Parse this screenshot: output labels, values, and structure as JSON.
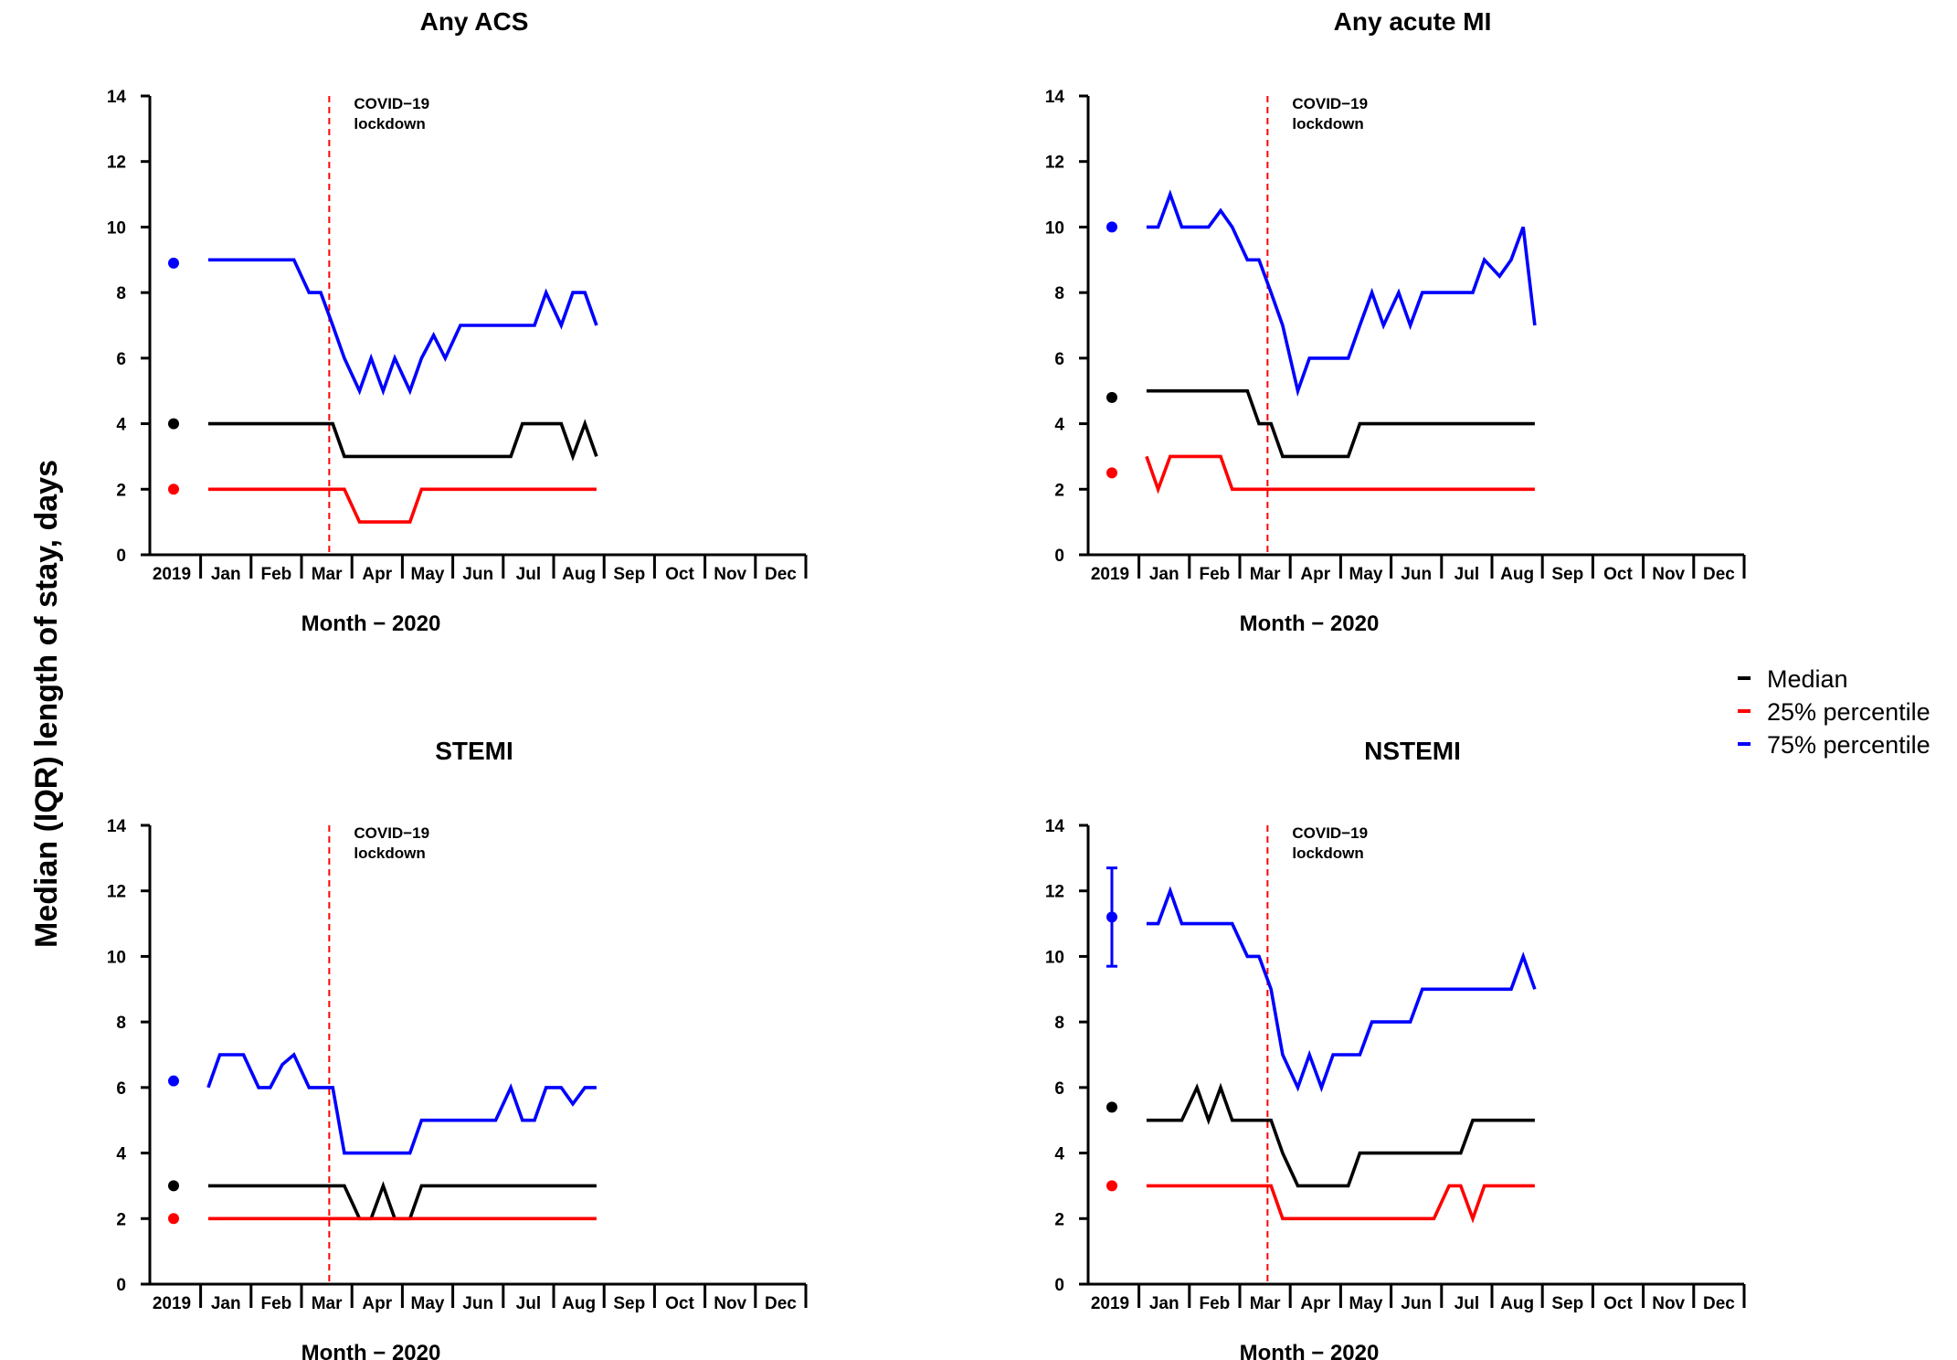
{
  "figure": {
    "ylabel": "Median (IQR) length of stay, days",
    "legend": {
      "placement": "right",
      "entries": [
        {
          "label": "Median",
          "color": "#000000"
        },
        {
          "label": "25% percentile",
          "color": "#ff0000"
        },
        {
          "label": "75% percentile",
          "color": "#0000ff"
        }
      ]
    }
  },
  "chart_data": [
    {
      "type": "line",
      "title": "Any ACS",
      "xlabel": "Month − 2020",
      "ylabel": "Median (IQR) length of stay, days",
      "ylim": [
        0,
        14
      ],
      "yticks": [
        0,
        2,
        4,
        6,
        8,
        10,
        12,
        14
      ],
      "x_tick_labels": [
        "2019",
        "Jan",
        "Feb",
        "Mar",
        "Apr",
        "May",
        "Jun",
        "Jul",
        "Aug",
        "Sep",
        "Oct",
        "Nov",
        "Dec"
      ],
      "annotation": {
        "lines": [
          "COVID−19",
          "lockdown"
        ],
        "x_month": 2.55
      },
      "baseline_2019": {
        "median": 4,
        "p25": 2,
        "p75": 8.9
      },
      "weeks": [
        0.15,
        0.38,
        0.62,
        0.85,
        1.15,
        1.38,
        1.62,
        1.85,
        2.15,
        2.38,
        2.62,
        2.85,
        3.15,
        3.38,
        3.62,
        3.85,
        4.15,
        4.38,
        4.62,
        4.85,
        5.15,
        5.38,
        5.62,
        5.85,
        6.15,
        6.38,
        6.62,
        6.85,
        7.15,
        7.38,
        7.62,
        7.85
      ],
      "series": [
        {
          "name": "Median",
          "color": "#000000",
          "values": [
            4,
            4,
            4,
            4,
            4,
            4,
            4,
            4,
            4,
            4,
            4,
            3,
            3,
            3,
            3,
            3,
            3,
            3,
            3,
            3,
            3,
            3,
            3,
            3,
            3,
            4,
            4,
            4,
            4,
            3,
            4,
            3
          ]
        },
        {
          "name": "25% percentile",
          "color": "#ff0000",
          "values": [
            2,
            2,
            2,
            2,
            2,
            2,
            2,
            2,
            2,
            2,
            2,
            2,
            1,
            1,
            1,
            1,
            1,
            2,
            2,
            2,
            2,
            2,
            2,
            2,
            2,
            2,
            2,
            2,
            2,
            2,
            2,
            2
          ]
        },
        {
          "name": "75% percentile",
          "color": "#0000ff",
          "values": [
            9,
            9,
            9,
            9,
            9,
            9,
            9,
            9,
            8,
            8,
            7,
            6,
            5,
            6,
            5,
            6,
            5,
            6,
            6.7,
            6,
            7,
            7,
            7,
            7,
            7,
            7,
            7,
            8,
            7,
            8,
            8,
            7
          ]
        }
      ]
    },
    {
      "type": "line",
      "title": "Any acute MI",
      "xlabel": "Month − 2020",
      "ylabel": "Median (IQR) length of stay, days",
      "ylim": [
        0,
        14
      ],
      "yticks": [
        0,
        2,
        4,
        6,
        8,
        10,
        12,
        14
      ],
      "x_tick_labels": [
        "2019",
        "Jan",
        "Feb",
        "Mar",
        "Apr",
        "May",
        "Jun",
        "Jul",
        "Aug",
        "Sep",
        "Oct",
        "Nov",
        "Dec"
      ],
      "annotation": {
        "lines": [
          "COVID−19",
          "lockdown"
        ],
        "x_month": 2.55
      },
      "baseline_2019": {
        "median": 4.8,
        "p25": 2.5,
        "p75": 10
      },
      "weeks": [
        0.15,
        0.38,
        0.62,
        0.85,
        1.15,
        1.38,
        1.62,
        1.85,
        2.15,
        2.38,
        2.62,
        2.85,
        3.15,
        3.38,
        3.62,
        3.85,
        4.15,
        4.38,
        4.62,
        4.85,
        5.15,
        5.38,
        5.62,
        5.85,
        6.15,
        6.38,
        6.62,
        6.85,
        7.15,
        7.38,
        7.62,
        7.85
      ],
      "series": [
        {
          "name": "Median",
          "color": "#000000",
          "values": [
            5,
            5,
            5,
            5,
            5,
            5,
            5,
            5,
            5,
            4,
            4,
            3,
            3,
            3,
            3,
            3,
            3,
            4,
            4,
            4,
            4,
            4,
            4,
            4,
            4,
            4,
            4,
            4,
            4,
            4,
            4,
            4
          ]
        },
        {
          "name": "25% percentile",
          "color": "#ff0000",
          "values": [
            3,
            2,
            3,
            3,
            3,
            3,
            3,
            2,
            2,
            2,
            2,
            2,
            2,
            2,
            2,
            2,
            2,
            2,
            2,
            2,
            2,
            2,
            2,
            2,
            2,
            2,
            2,
            2,
            2,
            2,
            2,
            2
          ]
        },
        {
          "name": "75% percentile",
          "color": "#0000ff",
          "values": [
            10,
            10,
            11,
            10,
            10,
            10,
            10.5,
            10,
            9,
            9,
            8,
            7,
            5,
            6,
            6,
            6,
            6,
            7,
            8,
            7,
            8,
            7,
            8,
            8,
            8,
            8,
            8,
            9,
            8.5,
            9,
            10,
            7
          ]
        }
      ]
    },
    {
      "type": "line",
      "title": "STEMI",
      "xlabel": "Month − 2020",
      "ylabel": "Median (IQR) length of stay, days",
      "ylim": [
        0,
        14
      ],
      "yticks": [
        0,
        2,
        4,
        6,
        8,
        10,
        12,
        14
      ],
      "x_tick_labels": [
        "2019",
        "Jan",
        "Feb",
        "Mar",
        "Apr",
        "May",
        "Jun",
        "Jul",
        "Aug",
        "Sep",
        "Oct",
        "Nov",
        "Dec"
      ],
      "annotation": {
        "lines": [
          "COVID−19",
          "lockdown"
        ],
        "x_month": 2.55
      },
      "baseline_2019": {
        "median": 3,
        "p25": 2,
        "p75": 6.2
      },
      "weeks": [
        0.15,
        0.38,
        0.62,
        0.85,
        1.15,
        1.38,
        1.62,
        1.85,
        2.15,
        2.38,
        2.62,
        2.85,
        3.15,
        3.38,
        3.62,
        3.85,
        4.15,
        4.38,
        4.62,
        4.85,
        5.15,
        5.38,
        5.62,
        5.85,
        6.15,
        6.38,
        6.62,
        6.85,
        7.15,
        7.38,
        7.62,
        7.85
      ],
      "series": [
        {
          "name": "Median",
          "color": "#000000",
          "values": [
            3,
            3,
            3,
            3,
            3,
            3,
            3,
            3,
            3,
            3,
            3,
            3,
            2,
            2,
            3,
            2,
            2,
            3,
            3,
            3,
            3,
            3,
            3,
            3,
            3,
            3,
            3,
            3,
            3,
            3,
            3,
            3
          ]
        },
        {
          "name": "25% percentile",
          "color": "#ff0000",
          "values": [
            2,
            2,
            2,
            2,
            2,
            2,
            2,
            2,
            2,
            2,
            2,
            2,
            2,
            2,
            2,
            2,
            2,
            2,
            2,
            2,
            2,
            2,
            2,
            2,
            2,
            2,
            2,
            2,
            2,
            2,
            2,
            2
          ]
        },
        {
          "name": "75% percentile",
          "color": "#0000ff",
          "values": [
            6,
            7,
            7,
            7,
            6,
            6,
            6.7,
            7,
            6,
            6,
            6,
            4,
            4,
            4,
            4,
            4,
            4,
            5,
            5,
            5,
            5,
            5,
            5,
            5,
            6,
            5,
            5,
            6,
            6,
            5.5,
            6,
            6
          ]
        }
      ]
    },
    {
      "type": "line",
      "title": "NSTEMI",
      "xlabel": "Month − 2020",
      "ylabel": "Median (IQR) length of stay, days",
      "ylim": [
        0,
        14
      ],
      "yticks": [
        0,
        2,
        4,
        6,
        8,
        10,
        12,
        14
      ],
      "x_tick_labels": [
        "2019",
        "Jan",
        "Feb",
        "Mar",
        "Apr",
        "May",
        "Jun",
        "Jul",
        "Aug",
        "Sep",
        "Oct",
        "Nov",
        "Dec"
      ],
      "annotation": {
        "lines": [
          "COVID−19",
          "lockdown"
        ],
        "x_month": 2.55
      },
      "baseline_2019": {
        "median": 5.4,
        "p25": 3,
        "p75": 11.2,
        "p75_error_bar": [
          9.7,
          12.7
        ]
      },
      "weeks": [
        0.15,
        0.38,
        0.62,
        0.85,
        1.15,
        1.38,
        1.62,
        1.85,
        2.15,
        2.38,
        2.62,
        2.85,
        3.15,
        3.38,
        3.62,
        3.85,
        4.15,
        4.38,
        4.62,
        4.85,
        5.15,
        5.38,
        5.62,
        5.85,
        6.15,
        6.38,
        6.62,
        6.85,
        7.15,
        7.38,
        7.62,
        7.85
      ],
      "series": [
        {
          "name": "Median",
          "color": "#000000",
          "values": [
            5,
            5,
            5,
            5,
            6,
            5,
            6,
            5,
            5,
            5,
            5,
            4,
            3,
            3,
            3,
            3,
            3,
            4,
            4,
            4,
            4,
            4,
            4,
            4,
            4,
            4,
            5,
            5,
            5,
            5,
            5,
            5
          ]
        },
        {
          "name": "25% percentile",
          "color": "#ff0000",
          "values": [
            3,
            3,
            3,
            3,
            3,
            3,
            3,
            3,
            3,
            3,
            3,
            2,
            2,
            2,
            2,
            2,
            2,
            2,
            2,
            2,
            2,
            2,
            2,
            2,
            3,
            3,
            2,
            3,
            3,
            3,
            3,
            3
          ]
        },
        {
          "name": "75% percentile",
          "color": "#0000ff",
          "values": [
            11,
            11,
            12,
            11,
            11,
            11,
            11,
            11,
            10,
            10,
            9,
            7,
            6,
            7,
            6,
            7,
            7,
            7,
            8,
            8,
            8,
            8,
            9,
            9,
            9,
            9,
            9,
            9,
            9,
            9,
            10,
            9
          ]
        }
      ]
    }
  ]
}
